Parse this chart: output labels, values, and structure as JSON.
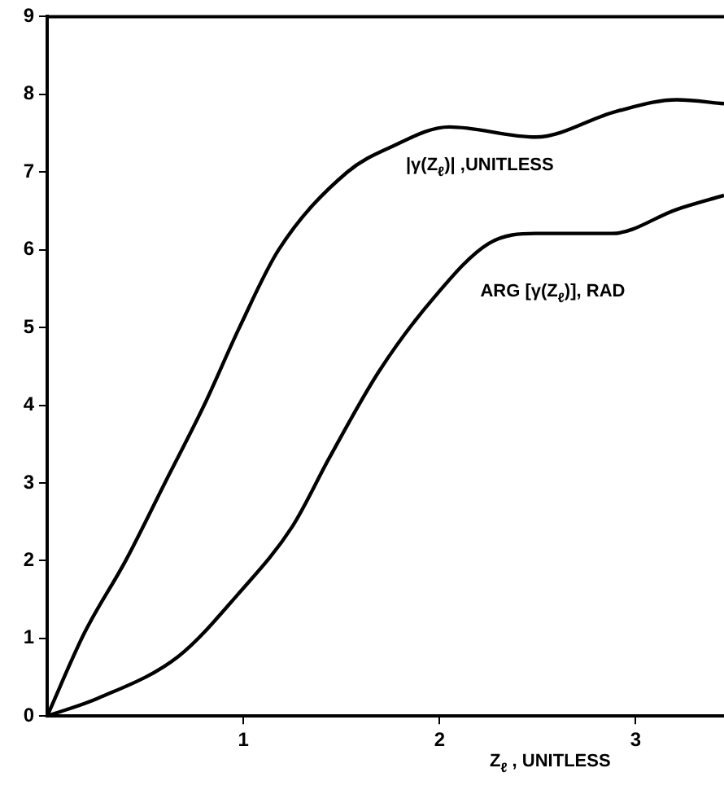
{
  "chart_data": {
    "type": "line",
    "xlabel": "Z$_{ℓ}$ , UNITLESS",
    "xlim": [
      0,
      3.45
    ],
    "xticks": [
      1,
      2,
      3
    ],
    "ylim": [
      0,
      9
    ],
    "yticks": [
      0,
      1,
      2,
      3,
      4,
      5,
      6,
      7,
      8,
      9
    ],
    "grid": false,
    "legend": false,
    "marker": "none",
    "line_style": "solid",
    "series": [
      {
        "name": "|γ(Z$_{ℓ}$)| ,UNITLESS",
        "color": "#000000",
        "x": [
          0,
          0.19,
          0.4,
          0.6,
          0.8,
          0.98,
          1.18,
          1.53,
          1.75,
          2.05,
          2.49,
          2.9,
          3.21,
          3.45
        ],
        "values": [
          0,
          1.07,
          2,
          3,
          4,
          5,
          6,
          7,
          7.32,
          7.58,
          7.45,
          7.78,
          7.93,
          7.88
        ]
      },
      {
        "name": "ARG [γ(Z$_{ℓ}$)], RAD",
        "color": "#000000",
        "x": [
          0,
          0.26,
          0.67,
          0.97,
          1.25,
          1.44,
          1.69,
          1.97,
          2.25,
          2.49,
          2.88,
          3.21,
          3.45
        ],
        "values": [
          0,
          0.23,
          0.77,
          1.56,
          2.44,
          3.33,
          4.43,
          5.38,
          6.08,
          6.21,
          6.21,
          6.52,
          6.7
        ]
      }
    ]
  }
}
